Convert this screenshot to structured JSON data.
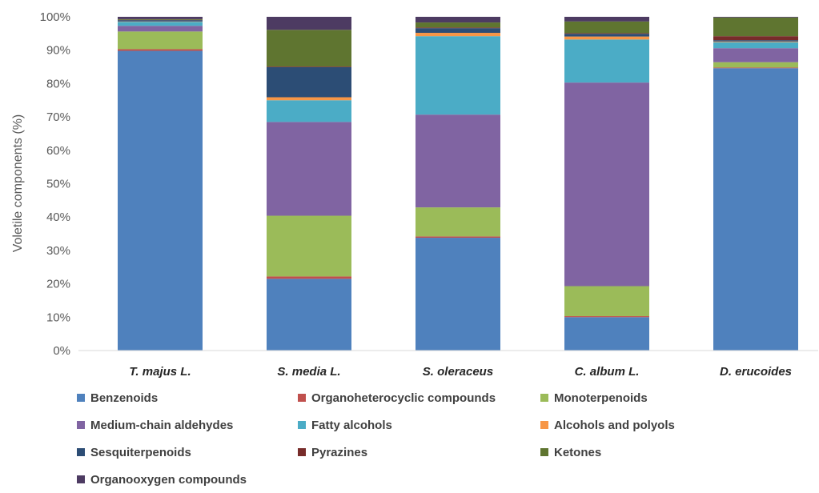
{
  "chart_data": {
    "type": "bar",
    "stacked": true,
    "title": "",
    "xlabel": "",
    "ylabel": "Voletile components (%)",
    "ylim": [
      0,
      100
    ],
    "yticks": [
      "0%",
      "10%",
      "20%",
      "30%",
      "40%",
      "50%",
      "60%",
      "70%",
      "80%",
      "90%",
      "100%"
    ],
    "grid": false,
    "legend_position": "bottom",
    "categories": [
      "T. majus L.",
      "S. media L.",
      "S. oleraceus",
      "C. album L.",
      "D. erucoides"
    ],
    "series": [
      {
        "name": "Benzenoids",
        "color": "#4f81bd",
        "values": [
          89.8,
          21.5,
          33.8,
          10.0,
          84.6
        ]
      },
      {
        "name": "Organoheterocyclic compounds",
        "color": "#c0504d",
        "values": [
          0.5,
          0.7,
          0.4,
          0.3,
          0.2
        ]
      },
      {
        "name": "Monoterpenoids",
        "color": "#9bbb59",
        "values": [
          5.3,
          18.2,
          8.7,
          9.0,
          1.6
        ]
      },
      {
        "name": "Medium-chain aldehydes",
        "color": "#8064a2",
        "values": [
          1.7,
          28.1,
          27.8,
          61.0,
          4.2
        ]
      },
      {
        "name": "Fatty alcohols",
        "color": "#4bacc6",
        "values": [
          1.2,
          6.5,
          23.5,
          12.9,
          1.8
        ]
      },
      {
        "name": "Alcohols and polyols",
        "color": "#f79646",
        "values": [
          0.1,
          0.9,
          1.0,
          0.9,
          0.2
        ]
      },
      {
        "name": "Sesquiterpenoids",
        "color": "#2c4d75",
        "values": [
          0.4,
          9.0,
          1.4,
          0.8,
          0.4
        ]
      },
      {
        "name": "Pyrazines",
        "color": "#772c2a",
        "values": [
          0.1,
          0.2,
          0.2,
          0.2,
          1.2
        ]
      },
      {
        "name": "Ketones",
        "color": "#5f7530",
        "values": [
          0.2,
          11.0,
          1.5,
          3.5,
          5.6
        ]
      },
      {
        "name": "Organooxygen compounds",
        "color": "#4d3b62",
        "values": [
          0.7,
          3.9,
          1.7,
          1.4,
          0.2
        ]
      }
    ]
  }
}
